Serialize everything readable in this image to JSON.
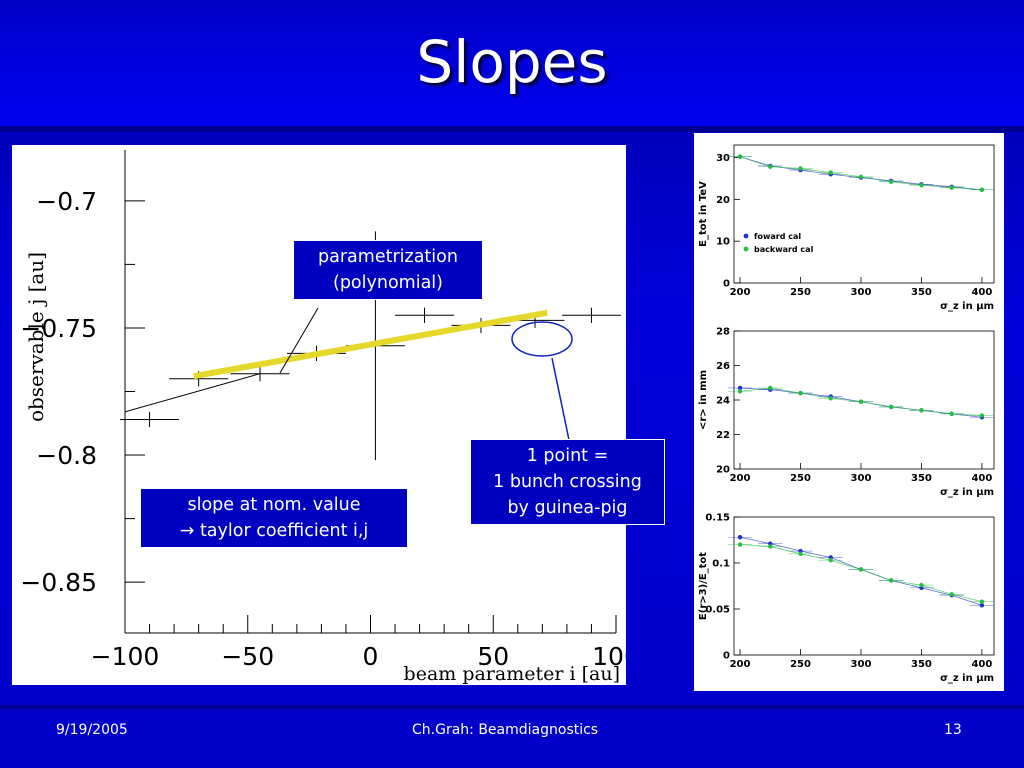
{
  "slide": {
    "title": "Slopes",
    "footer_date": "9/19/2005",
    "footer_center": "Ch.Grah: Beamdiagnostics",
    "footer_page": "13"
  },
  "colors": {
    "fit_line": "#e6d82a",
    "callout_bg": "#0000c0",
    "series_forward": "#1f2fd0",
    "series_backward": "#22c040"
  },
  "callouts": {
    "parametrization": [
      "parametrization",
      "(polynomial)"
    ],
    "point": [
      "1 point =",
      "1 bunch crossing",
      "by guinea-pig"
    ],
    "slope": [
      "slope at nom. value",
      "→ taylor coefficient i,j"
    ]
  },
  "chart_data": [
    {
      "type": "scatter",
      "xlabel": "beam parameter i [au]",
      "ylabel": "observable j [au]",
      "xlim": [
        -100,
        100
      ],
      "ylim": [
        -0.87,
        -0.68
      ],
      "x_ticks": [
        -100,
        -50,
        0,
        50,
        100
      ],
      "x_tick_labels": [
        "−100",
        "−50",
        "0",
        "50",
        "100"
      ],
      "y_ticks": [
        -0.7,
        -0.75,
        -0.8,
        -0.85
      ],
      "y_tick_labels": [
        "−0.7",
        "−0.75",
        "−0.8",
        "−0.85"
      ],
      "points": [
        {
          "x": -90,
          "y": -0.786,
          "xerr": 12,
          "yerr": 0.003
        },
        {
          "x": -70,
          "y": -0.77,
          "xerr": 12,
          "yerr": 0.003
        },
        {
          "x": -45,
          "y": -0.768,
          "xerr": 12,
          "yerr": 0.003
        },
        {
          "x": -22,
          "y": -0.76,
          "xerr": 12,
          "yerr": 0.003
        },
        {
          "x": 2,
          "y": -0.757,
          "xerr": 12,
          "yerr": 0.045
        },
        {
          "x": 22,
          "y": -0.745,
          "xerr": 12,
          "yerr": 0.003
        },
        {
          "x": 45,
          "y": -0.749,
          "xerr": 12,
          "yerr": 0.003
        },
        {
          "x": 67,
          "y": -0.747,
          "xerr": 12,
          "yerr": 0.003
        },
        {
          "x": 90,
          "y": -0.745,
          "xerr": 12,
          "yerr": 0.003
        }
      ],
      "fit_line": [
        {
          "x": -72,
          "y": -0.769
        },
        {
          "x": 72,
          "y": -0.744
        }
      ],
      "connect_line": [
        {
          "x": -100,
          "y": -0.783
        },
        {
          "x": -45,
          "y": -0.768
        }
      ]
    },
    {
      "type": "scatter",
      "ylabel": "E_tot in TeV",
      "xlabel": "σ_z in μm",
      "xlim": [
        195,
        410
      ],
      "ylim": [
        0,
        33
      ],
      "x_ticks": [
        200,
        250,
        300,
        350,
        400
      ],
      "y_ticks": [
        0,
        10,
        20,
        30
      ],
      "legend": [
        "foward cal",
        "backward cal"
      ],
      "series": [
        {
          "name": "foward cal",
          "x": [
            200,
            225,
            250,
            275,
            300,
            325,
            350,
            375,
            400
          ],
          "y": [
            30.2,
            28.0,
            27.0,
            26.0,
            25.2,
            24.4,
            23.6,
            23.0,
            22.3
          ]
        },
        {
          "name": "backward cal",
          "x": [
            200,
            225,
            250,
            275,
            300,
            325,
            350,
            375,
            400
          ],
          "y": [
            30.2,
            27.8,
            27.4,
            26.4,
            25.4,
            24.2,
            23.4,
            22.8,
            22.3
          ]
        }
      ]
    },
    {
      "type": "scatter",
      "ylabel": "<r> in mm",
      "xlabel": "σ_z in μm",
      "xlim": [
        195,
        410
      ],
      "ylim": [
        20,
        28
      ],
      "x_ticks": [
        200,
        250,
        300,
        350,
        400
      ],
      "y_ticks": [
        20,
        22,
        24,
        26,
        28
      ],
      "series": [
        {
          "name": "foward cal",
          "x": [
            200,
            225,
            250,
            275,
            300,
            325,
            350,
            375,
            400
          ],
          "y": [
            24.7,
            24.6,
            24.4,
            24.2,
            23.9,
            23.6,
            23.4,
            23.2,
            23.0
          ]
        },
        {
          "name": "backward cal",
          "x": [
            200,
            225,
            250,
            275,
            300,
            325,
            350,
            375,
            400
          ],
          "y": [
            24.5,
            24.7,
            24.4,
            24.1,
            23.9,
            23.6,
            23.4,
            23.2,
            23.1
          ]
        }
      ]
    },
    {
      "type": "scatter",
      "ylabel": "E(r>3)/E_tot",
      "xlabel": "σ_z in μm",
      "xlim": [
        195,
        410
      ],
      "ylim": [
        0,
        0.15
      ],
      "x_ticks": [
        200,
        250,
        300,
        350,
        400
      ],
      "y_ticks": [
        0,
        0.05,
        0.1,
        0.15
      ],
      "y_tick_labels": [
        "0",
        "0.05",
        "0.1",
        "0.15"
      ],
      "series": [
        {
          "name": "foward cal",
          "x": [
            200,
            225,
            250,
            275,
            300,
            325,
            350,
            375,
            400
          ],
          "y": [
            0.128,
            0.121,
            0.113,
            0.106,
            0.093,
            0.081,
            0.073,
            0.065,
            0.054
          ]
        },
        {
          "name": "backward cal",
          "x": [
            200,
            225,
            250,
            275,
            300,
            325,
            350,
            375,
            400
          ],
          "y": [
            0.12,
            0.118,
            0.11,
            0.103,
            0.093,
            0.081,
            0.076,
            0.066,
            0.058
          ]
        }
      ]
    }
  ]
}
